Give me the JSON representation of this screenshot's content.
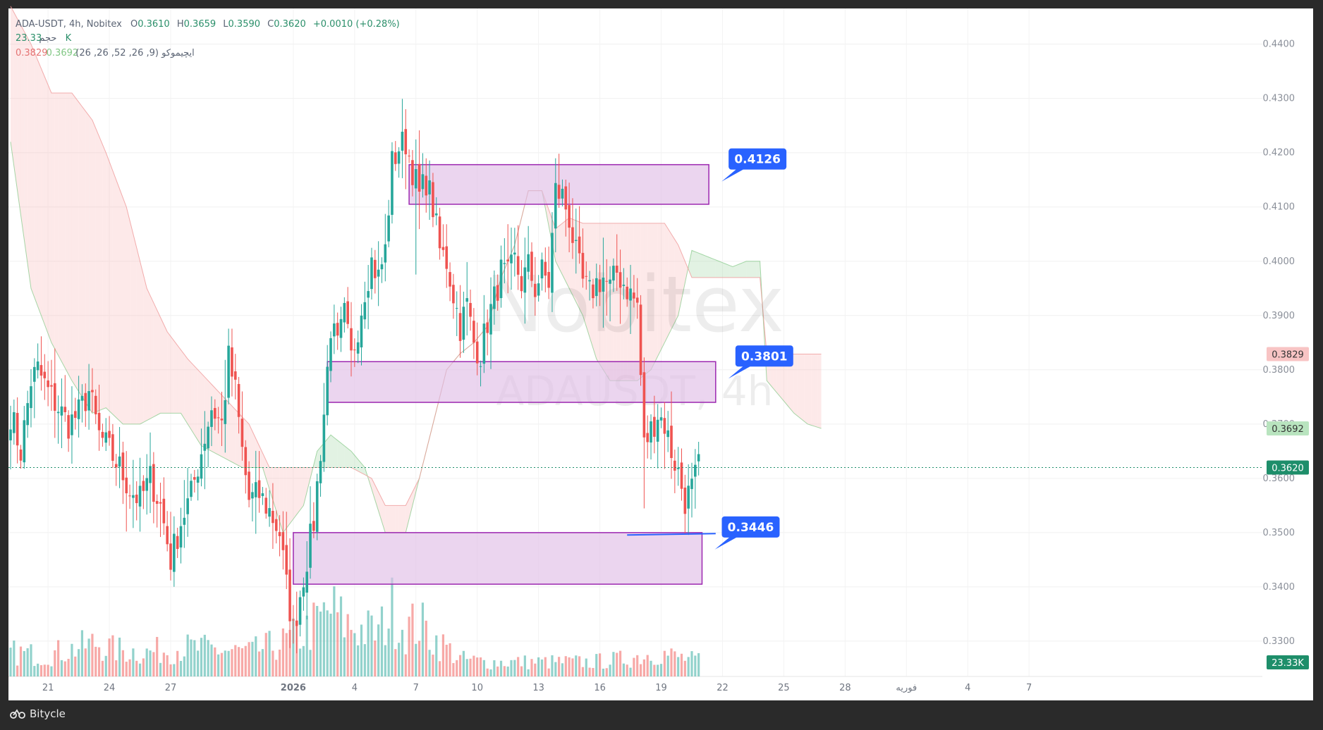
{
  "header": {
    "symbol_line": "ADA-USDT, 4h, Nobitex",
    "o_label": "O",
    "o_value": "0.3610",
    "h_label": "H",
    "h_value": "0.3659",
    "l_label": "L",
    "l_value": "0.3590",
    "c_label": "C",
    "c_value": "0.3620",
    "change": "+0.0010 (+0.28%)",
    "volume_label": "حجم",
    "volume_value": "23.33 K",
    "ichimoku_label": "ایچیموکو (9, 26, 52, 26, 26)",
    "ichimoku_v1": "0.3692",
    "ichimoku_v2": "0.3829"
  },
  "watermark": {
    "brand": "Nobitex",
    "symbol": "ADAUSDT, 4h"
  },
  "footer": {
    "brand": "Bitycle"
  },
  "colors": {
    "bull": "#26a69a",
    "bear": "#ef5350",
    "cloud_green": "#a5d6a7",
    "cloud_red": "#f8bbbb",
    "zone_fill": "#e1bee7",
    "zone_stroke": "#9c27b0",
    "callout": "#2962ff",
    "current_price": "#1e8e6a"
  },
  "chart_data": {
    "type": "candlestick",
    "instrument": "ADA-USDT",
    "timeframe": "4h",
    "exchange": "Nobitex",
    "yaxis": {
      "ticks": [
        "0.4400",
        "0.4300",
        "0.4200",
        "0.4100",
        "0.4000",
        "0.3900",
        "0.3800",
        "0.3700",
        "0.3600",
        "0.3500",
        "0.3400",
        "0.3300"
      ],
      "range": [
        0.3235,
        0.4445
      ]
    },
    "xaxis": {
      "ticks": [
        {
          "label": "21",
          "idx": 11
        },
        {
          "label": "24",
          "idx": 29
        },
        {
          "label": "27",
          "idx": 47
        },
        {
          "label": "2026",
          "idx": 83
        },
        {
          "label": "4",
          "idx": 101
        },
        {
          "label": "7",
          "idx": 119
        },
        {
          "label": "10",
          "idx": 137
        },
        {
          "label": "13",
          "idx": 155
        },
        {
          "label": "16",
          "idx": 173
        },
        {
          "label": "19",
          "idx": 191
        },
        {
          "label": "22",
          "idx": 209
        },
        {
          "label": "25",
          "idx": 227
        },
        {
          "label": "28",
          "idx": 245
        },
        {
          "label": "فوریه",
          "idx": 263
        },
        {
          "label": "4",
          "idx": 281
        },
        {
          "label": "7",
          "idx": 299
        }
      ]
    },
    "current_price": "0.3620",
    "ichimoku_last": {
      "span_a": "0.3692",
      "span_b": "0.3829"
    },
    "volume_last": "23.33K",
    "zones": [
      {
        "low": 0.4105,
        "high": 0.4178,
        "label": "0.4126",
        "from_idx": 117,
        "to_idx": 205
      },
      {
        "low": 0.374,
        "high": 0.3815,
        "label": "0.3801",
        "from_idx": 93,
        "to_idx": 207
      },
      {
        "low": 0.3405,
        "high": 0.35,
        "label": "0.3446",
        "from_idx": 83,
        "to_idx": 203
      }
    ],
    "support_line": {
      "price": 0.3497,
      "from_idx": 181,
      "to_idx": 207
    },
    "anchors": {
      "close": [
        [
          0,
          0.372
        ],
        [
          3,
          0.365
        ],
        [
          6,
          0.378
        ],
        [
          8,
          0.38
        ],
        [
          11,
          0.376
        ],
        [
          14,
          0.373
        ],
        [
          17,
          0.37
        ],
        [
          20,
          0.372
        ],
        [
          23,
          0.376
        ],
        [
          26,
          0.368
        ],
        [
          29,
          0.365
        ],
        [
          32,
          0.362
        ],
        [
          35,
          0.358
        ],
        [
          38,
          0.356
        ],
        [
          41,
          0.36
        ],
        [
          44,
          0.355
        ],
        [
          47,
          0.345
        ],
        [
          50,
          0.352
        ],
        [
          53,
          0.357
        ],
        [
          56,
          0.365
        ],
        [
          59,
          0.373
        ],
        [
          62,
          0.37
        ],
        [
          64,
          0.382
        ],
        [
          66,
          0.376
        ],
        [
          68,
          0.365
        ],
        [
          70,
          0.356
        ],
        [
          73,
          0.357
        ],
        [
          76,
          0.354
        ],
        [
          79,
          0.35
        ],
        [
          81,
          0.34
        ],
        [
          83,
          0.332
        ],
        [
          86,
          0.342
        ],
        [
          89,
          0.352
        ],
        [
          92,
          0.372
        ],
        [
          94,
          0.388
        ],
        [
          96,
          0.384
        ],
        [
          98,
          0.39
        ],
        [
          100,
          0.382
        ],
        [
          102,
          0.388
        ],
        [
          104,
          0.395
        ],
        [
          106,
          0.4
        ],
        [
          108,
          0.397
        ],
        [
          110,
          0.402
        ],
        [
          112,
          0.418
        ],
        [
          114,
          0.421
        ],
        [
          116,
          0.422
        ],
        [
          118,
          0.417
        ],
        [
          120,
          0.412
        ],
        [
          122,
          0.415
        ],
        [
          124,
          0.41
        ],
        [
          126,
          0.402
        ],
        [
          128,
          0.4
        ],
        [
          130,
          0.394
        ],
        [
          132,
          0.388
        ],
        [
          134,
          0.392
        ],
        [
          136,
          0.385
        ],
        [
          138,
          0.383
        ],
        [
          140,
          0.389
        ],
        [
          142,
          0.393
        ],
        [
          144,
          0.398
        ],
        [
          146,
          0.397
        ],
        [
          148,
          0.4
        ],
        [
          150,
          0.396
        ],
        [
          152,
          0.399
        ],
        [
          154,
          0.395
        ],
        [
          156,
          0.398
        ],
        [
          158,
          0.396
        ],
        [
          160,
          0.413
        ],
        [
          162,
          0.412
        ],
        [
          164,
          0.408
        ],
        [
          166,
          0.401
        ],
        [
          168,
          0.396
        ],
        [
          170,
          0.394
        ],
        [
          172,
          0.396
        ],
        [
          174,
          0.397
        ],
        [
          176,
          0.395
        ],
        [
          178,
          0.398
        ],
        [
          180,
          0.396
        ],
        [
          182,
          0.394
        ],
        [
          184,
          0.392
        ],
        [
          186,
          0.366
        ],
        [
          188,
          0.369
        ],
        [
          190,
          0.372
        ],
        [
          192,
          0.37
        ],
        [
          194,
          0.365
        ],
        [
          196,
          0.361
        ],
        [
          198,
          0.356
        ],
        [
          200,
          0.358
        ],
        [
          202,
          0.362
        ]
      ],
      "span_a": [
        [
          0,
          0.422
        ],
        [
          6,
          0.395
        ],
        [
          12,
          0.385
        ],
        [
          18,
          0.378
        ],
        [
          24,
          0.372
        ],
        [
          28,
          0.373
        ],
        [
          33,
          0.37
        ],
        [
          38,
          0.37
        ],
        [
          44,
          0.372
        ],
        [
          50,
          0.372
        ],
        [
          56,
          0.366
        ],
        [
          62,
          0.364
        ],
        [
          68,
          0.362
        ],
        [
          74,
          0.362
        ],
        [
          80,
          0.35
        ],
        [
          86,
          0.355
        ],
        [
          90,
          0.365
        ],
        [
          94,
          0.368
        ],
        [
          100,
          0.365
        ],
        [
          104,
          0.362
        ],
        [
          110,
          0.35
        ],
        [
          116,
          0.35
        ],
        [
          120,
          0.36
        ],
        [
          124,
          0.37
        ],
        [
          128,
          0.38
        ],
        [
          132,
          0.383
        ],
        [
          136,
          0.385
        ],
        [
          140,
          0.388
        ],
        [
          144,
          0.397
        ],
        [
          148,
          0.403
        ],
        [
          152,
          0.413
        ],
        [
          156,
          0.413
        ],
        [
          160,
          0.4
        ],
        [
          164,
          0.395
        ],
        [
          168,
          0.39
        ],
        [
          172,
          0.382
        ],
        [
          176,
          0.378
        ],
        [
          180,
          0.378
        ],
        [
          184,
          0.378
        ],
        [
          188,
          0.38
        ],
        [
          192,
          0.385
        ],
        [
          196,
          0.39
        ],
        [
          200,
          0.402
        ],
        [
          204,
          0.401
        ],
        [
          208,
          0.4
        ],
        [
          212,
          0.399
        ],
        [
          216,
          0.4
        ],
        [
          220,
          0.4
        ],
        [
          222,
          0.378
        ],
        [
          226,
          0.375
        ],
        [
          230,
          0.372
        ],
        [
          234,
          0.37
        ],
        [
          238,
          0.3692
        ]
      ],
      "span_b": [
        [
          0,
          0.447
        ],
        [
          6,
          0.44
        ],
        [
          12,
          0.431
        ],
        [
          18,
          0.431
        ],
        [
          24,
          0.426
        ],
        [
          28,
          0.42
        ],
        [
          34,
          0.41
        ],
        [
          40,
          0.395
        ],
        [
          46,
          0.387
        ],
        [
          52,
          0.382
        ],
        [
          58,
          0.378
        ],
        [
          64,
          0.374
        ],
        [
          70,
          0.37
        ],
        [
          76,
          0.362
        ],
        [
          82,
          0.362
        ],
        [
          90,
          0.362
        ],
        [
          96,
          0.362
        ],
        [
          100,
          0.362
        ],
        [
          106,
          0.36
        ],
        [
          110,
          0.355
        ],
        [
          116,
          0.355
        ],
        [
          120,
          0.36
        ],
        [
          124,
          0.37
        ],
        [
          128,
          0.38
        ],
        [
          132,
          0.383
        ],
        [
          136,
          0.385
        ],
        [
          140,
          0.388
        ],
        [
          144,
          0.397
        ],
        [
          148,
          0.403
        ],
        [
          152,
          0.413
        ],
        [
          156,
          0.413
        ],
        [
          160,
          0.406
        ],
        [
          164,
          0.408
        ],
        [
          168,
          0.407
        ],
        [
          172,
          0.407
        ],
        [
          176,
          0.407
        ],
        [
          180,
          0.407
        ],
        [
          184,
          0.407
        ],
        [
          188,
          0.407
        ],
        [
          192,
          0.407
        ],
        [
          196,
          0.403
        ],
        [
          200,
          0.397
        ],
        [
          204,
          0.397
        ],
        [
          208,
          0.397
        ],
        [
          212,
          0.397
        ],
        [
          216,
          0.397
        ],
        [
          220,
          0.397
        ],
        [
          222,
          0.383
        ],
        [
          230,
          0.3829
        ],
        [
          238,
          0.3829
        ]
      ],
      "volume": [
        [
          0,
          0.25
        ],
        [
          10,
          0.22
        ],
        [
          20,
          0.3
        ],
        [
          25,
          0.35
        ],
        [
          30,
          0.28
        ],
        [
          40,
          0.25
        ],
        [
          50,
          0.3
        ],
        [
          60,
          0.28
        ],
        [
          70,
          0.25
        ],
        [
          80,
          0.35
        ],
        [
          86,
          0.45
        ],
        [
          90,
          0.55
        ],
        [
          94,
          0.7
        ],
        [
          98,
          0.55
        ],
        [
          102,
          0.5
        ],
        [
          108,
          0.45
        ],
        [
          112,
          0.7
        ],
        [
          116,
          0.5
        ],
        [
          120,
          0.55
        ],
        [
          124,
          0.4
        ],
        [
          128,
          0.3
        ],
        [
          132,
          0.18
        ],
        [
          140,
          0.15
        ],
        [
          150,
          0.15
        ],
        [
          160,
          0.15
        ],
        [
          170,
          0.15
        ],
        [
          180,
          0.18
        ],
        [
          190,
          0.25
        ],
        [
          196,
          0.2
        ],
        [
          202,
          0.16
        ]
      ]
    }
  }
}
